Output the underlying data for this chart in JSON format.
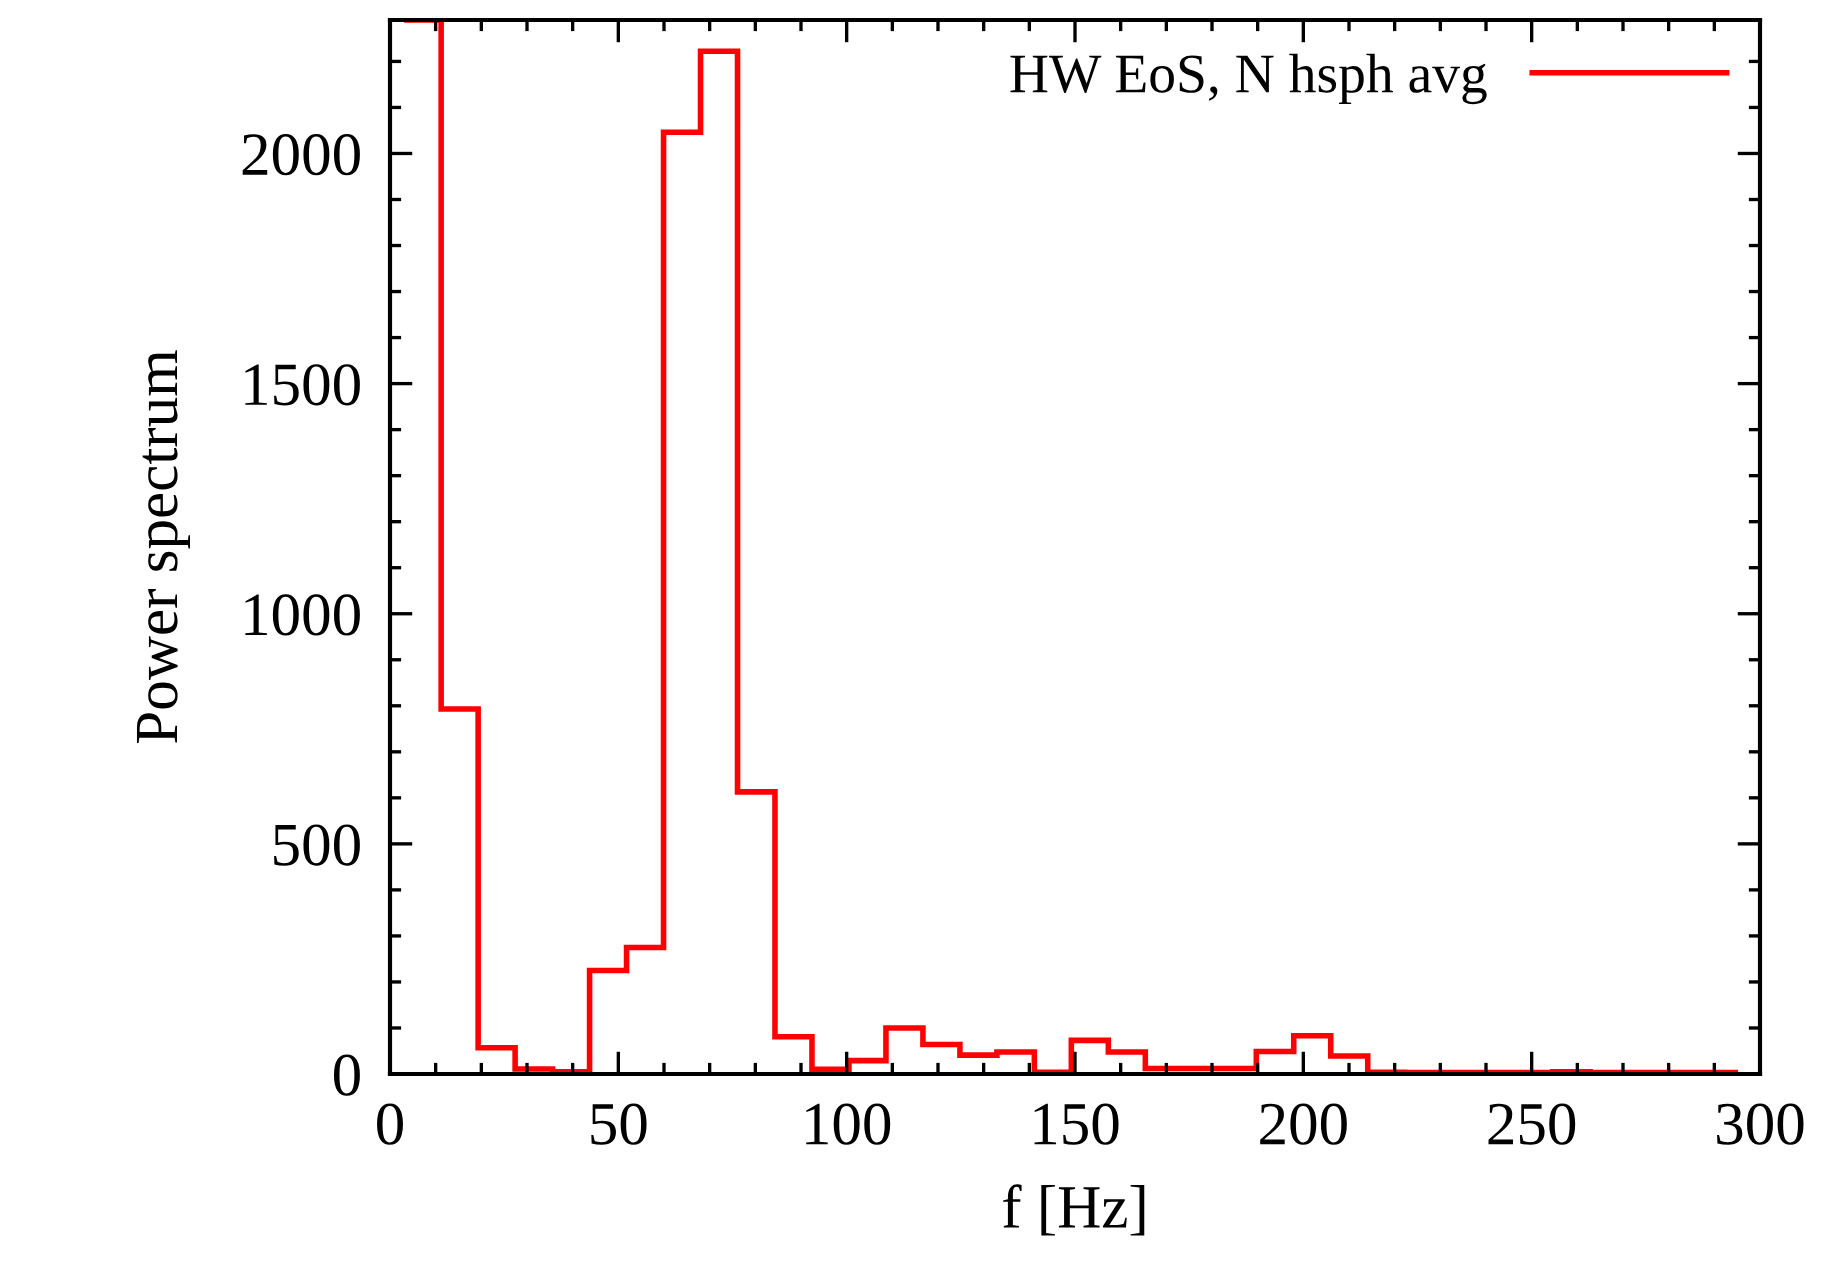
{
  "chart_data": {
    "type": "histogram",
    "xlabel": "f [Hz]",
    "ylabel": "Power spectrum",
    "bins": [
      3.1,
      11.2,
      19.3,
      27.4,
      35.6,
      43.7,
      51.8,
      59.9,
      68.0,
      76.1,
      84.3,
      92.4,
      100.5,
      108.6,
      116.7,
      124.8,
      132.9,
      141.1,
      149.2,
      157.3,
      165.4,
      173.5,
      181.6,
      189.7,
      197.9,
      206.0,
      214.1,
      222.2,
      230.3,
      238.4,
      246.5,
      254.6,
      262.8,
      270.9,
      279.0,
      287.1,
      295.2
    ],
    "series": [
      {
        "name": "HW EoS, N hsph avg",
        "color": "#ff0000",
        "values": [
          2290,
          793,
          57,
          11,
          5,
          225,
          275,
          2046,
          2222,
          613,
          81,
          10,
          29,
          100,
          64,
          41,
          48,
          4,
          73,
          48,
          12,
          12,
          12,
          49,
          83,
          39,
          4,
          3,
          3,
          3,
          3,
          5,
          3,
          3,
          3,
          3
        ]
      }
    ],
    "xlim": [
      0,
      300
    ],
    "xticks": [
      0,
      50,
      100,
      150,
      200,
      250,
      300
    ],
    "ylim": [
      0,
      2290
    ],
    "yticks": [
      0,
      500,
      1000,
      1500,
      2000
    ],
    "grid": false,
    "legend": "top right"
  }
}
